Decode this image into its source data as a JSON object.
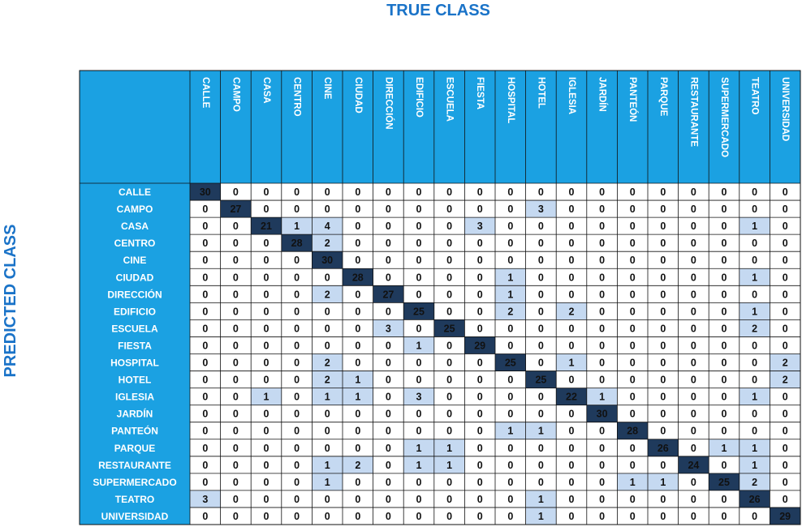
{
  "chart_data": {
    "type": "heatmap",
    "xlabel": "TRUE CLASS",
    "ylabel": "PREDICTED CLASS",
    "x_categories": [
      "CALLE",
      "CAMPO",
      "CASA",
      "CENTRO",
      "CINE",
      "CIUDAD",
      "DIRECCIÓN",
      "EDIFICIO",
      "ESCUELA",
      "FIESTA",
      "HOSPITAL",
      "HOTEL",
      "IGLESIA",
      "JARDÍN",
      "PANTEÓN",
      "PARQUE",
      "RESTAURANTE",
      "SUPERMERCADO",
      "TEATRO",
      "UNIVERSIDAD"
    ],
    "y_categories": [
      "CALLE",
      "CAMPO",
      "CASA",
      "CENTRO",
      "CINE",
      "CIUDAD",
      "DIRECCIÓN",
      "EDIFICIO",
      "ESCUELA",
      "FIESTA",
      "HOSPITAL",
      "HOTEL",
      "IGLESIA",
      "JARDÍN",
      "PANTEÓN",
      "PARQUE",
      "RESTAURANTE",
      "SUPERMERCADO",
      "TEATRO",
      "UNIVERSIDAD"
    ],
    "values": [
      [
        30,
        0,
        0,
        0,
        0,
        0,
        0,
        0,
        0,
        0,
        0,
        0,
        0,
        0,
        0,
        0,
        0,
        0,
        0,
        0
      ],
      [
        0,
        27,
        0,
        0,
        0,
        0,
        0,
        0,
        0,
        0,
        0,
        3,
        0,
        0,
        0,
        0,
        0,
        0,
        0,
        0
      ],
      [
        0,
        0,
        21,
        1,
        4,
        0,
        0,
        0,
        0,
        3,
        0,
        0,
        0,
        0,
        0,
        0,
        0,
        0,
        1,
        0
      ],
      [
        0,
        0,
        0,
        28,
        2,
        0,
        0,
        0,
        0,
        0,
        0,
        0,
        0,
        0,
        0,
        0,
        0,
        0,
        0,
        0
      ],
      [
        0,
        0,
        0,
        0,
        30,
        0,
        0,
        0,
        0,
        0,
        0,
        0,
        0,
        0,
        0,
        0,
        0,
        0,
        0,
        0
      ],
      [
        0,
        0,
        0,
        0,
        0,
        28,
        0,
        0,
        0,
        0,
        1,
        0,
        0,
        0,
        0,
        0,
        0,
        0,
        1,
        0
      ],
      [
        0,
        0,
        0,
        0,
        2,
        0,
        27,
        0,
        0,
        0,
        1,
        0,
        0,
        0,
        0,
        0,
        0,
        0,
        0,
        0
      ],
      [
        0,
        0,
        0,
        0,
        0,
        0,
        0,
        25,
        0,
        0,
        2,
        0,
        2,
        0,
        0,
        0,
        0,
        0,
        1,
        0
      ],
      [
        0,
        0,
        0,
        0,
        0,
        0,
        3,
        0,
        25,
        0,
        0,
        0,
        0,
        0,
        0,
        0,
        0,
        0,
        2,
        0
      ],
      [
        0,
        0,
        0,
        0,
        0,
        0,
        0,
        1,
        0,
        29,
        0,
        0,
        0,
        0,
        0,
        0,
        0,
        0,
        0,
        0
      ],
      [
        0,
        0,
        0,
        0,
        2,
        0,
        0,
        0,
        0,
        0,
        25,
        0,
        1,
        0,
        0,
        0,
        0,
        0,
        0,
        2
      ],
      [
        0,
        0,
        0,
        0,
        2,
        1,
        0,
        0,
        0,
        0,
        0,
        25,
        0,
        0,
        0,
        0,
        0,
        0,
        0,
        2
      ],
      [
        0,
        0,
        1,
        0,
        1,
        1,
        0,
        3,
        0,
        0,
        0,
        0,
        22,
        1,
        0,
        0,
        0,
        0,
        1,
        0
      ],
      [
        0,
        0,
        0,
        0,
        0,
        0,
        0,
        0,
        0,
        0,
        0,
        0,
        0,
        30,
        0,
        0,
        0,
        0,
        0,
        0
      ],
      [
        0,
        0,
        0,
        0,
        0,
        0,
        0,
        0,
        0,
        0,
        1,
        1,
        0,
        0,
        28,
        0,
        0,
        0,
        0,
        0
      ],
      [
        0,
        0,
        0,
        0,
        0,
        0,
        0,
        1,
        1,
        0,
        0,
        0,
        0,
        0,
        0,
        26,
        0,
        1,
        1,
        0
      ],
      [
        0,
        0,
        0,
        0,
        1,
        2,
        0,
        1,
        1,
        0,
        0,
        0,
        0,
        0,
        0,
        0,
        24,
        0,
        1,
        0
      ],
      [
        0,
        0,
        0,
        0,
        1,
        0,
        0,
        0,
        0,
        0,
        0,
        0,
        0,
        0,
        1,
        1,
        0,
        25,
        2,
        0
      ],
      [
        3,
        0,
        0,
        0,
        0,
        0,
        0,
        0,
        0,
        0,
        0,
        1,
        0,
        0,
        0,
        0,
        0,
        0,
        26,
        0
      ],
      [
        0,
        0,
        0,
        0,
        0,
        0,
        0,
        0,
        0,
        0,
        0,
        1,
        0,
        0,
        0,
        0,
        0,
        0,
        0,
        29
      ]
    ],
    "colors": {
      "header": "#1ba1e2",
      "diagonal": "#1f3a5c",
      "off_diagonal": "#c5d9f1",
      "grid": "#111111",
      "axis_title": "#1a73c8"
    }
  }
}
